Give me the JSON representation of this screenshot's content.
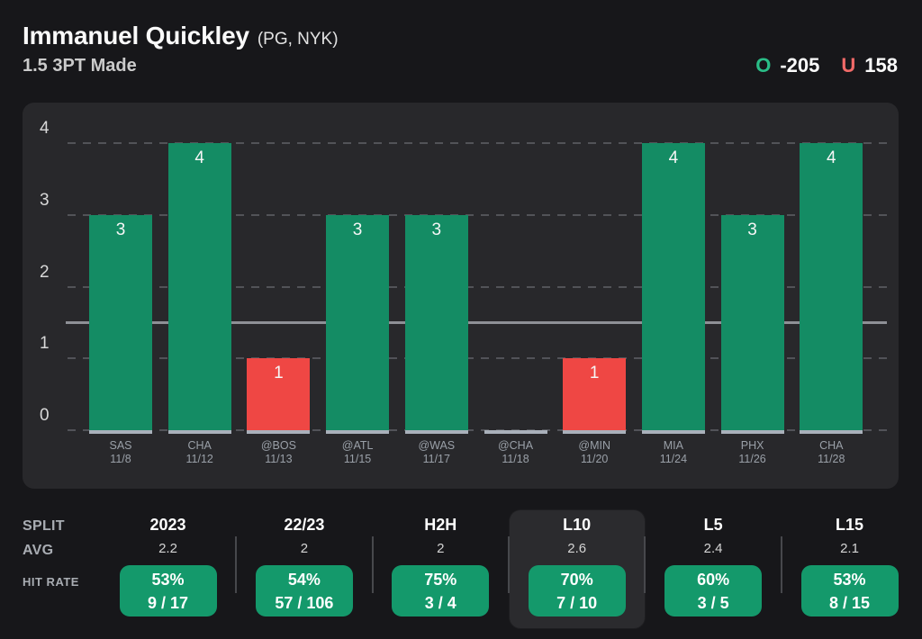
{
  "header": {
    "player": "Immanuel Quickley",
    "position": "(PG, NYK)",
    "prop": "1.5 3PT Made",
    "over_label": "O",
    "over_odds": "-205",
    "under_label": "U",
    "under_odds": "158"
  },
  "colors": {
    "page_bg": "#17171a",
    "panel_bg": "#28282b",
    "bar_over_green": "#148c64",
    "bar_under_red": "#ef4744",
    "pill_green": "#14996b",
    "over_letter_green": "#2abd87",
    "under_letter_red": "#f16a68",
    "prop_line_gray": "#8e9096",
    "baseline_strip": "#a9b0ba"
  },
  "chart_data": {
    "type": "bar",
    "prop_line": 1.5,
    "ylim": [
      0,
      4.35
    ],
    "yticks": [
      0,
      1,
      2,
      3,
      4
    ],
    "grid": "dashed-horizontal",
    "legend": "none",
    "categories": [
      "SAS 11/8",
      "CHA 11/12",
      "@BOS 11/13",
      "@ATL 11/15",
      "@WAS 11/17",
      "@CHA 11/18",
      "@MIN 11/20",
      "MIA 11/24",
      "PHX 11/26",
      "CHA 11/28"
    ],
    "games": [
      {
        "team": "SAS",
        "date": "11/8",
        "value": 3
      },
      {
        "team": "CHA",
        "date": "11/12",
        "value": 4
      },
      {
        "team": "@BOS",
        "date": "11/13",
        "value": 1
      },
      {
        "team": "@ATL",
        "date": "11/15",
        "value": 3
      },
      {
        "team": "@WAS",
        "date": "11/17",
        "value": 3
      },
      {
        "team": "@CHA",
        "date": "11/18",
        "value": 0
      },
      {
        "team": "@MIN",
        "date": "11/20",
        "value": 1
      },
      {
        "team": "MIA",
        "date": "11/24",
        "value": 4
      },
      {
        "team": "PHX",
        "date": "11/26",
        "value": 3
      },
      {
        "team": "CHA",
        "date": "11/28",
        "value": 4
      }
    ],
    "values": [
      3,
      4,
      1,
      3,
      3,
      0,
      1,
      4,
      3,
      4
    ]
  },
  "splits": {
    "row_labels": {
      "split": "SPLIT",
      "avg": "AVG",
      "hit_rate": "HIT RATE"
    },
    "columns": [
      {
        "label": "2023",
        "avg": "2.2",
        "hit_pct": "53%",
        "record": "9 / 17",
        "selected": false
      },
      {
        "label": "22/23",
        "avg": "2",
        "hit_pct": "54%",
        "record": "57 / 106",
        "selected": false
      },
      {
        "label": "H2H",
        "avg": "2",
        "hit_pct": "75%",
        "record": "3 / 4",
        "selected": false
      },
      {
        "label": "L10",
        "avg": "2.6",
        "hit_pct": "70%",
        "record": "7 / 10",
        "selected": true
      },
      {
        "label": "L5",
        "avg": "2.4",
        "hit_pct": "60%",
        "record": "3 / 5",
        "selected": false
      },
      {
        "label": "L15",
        "avg": "2.1",
        "hit_pct": "53%",
        "record": "8 / 15",
        "selected": false
      }
    ]
  }
}
